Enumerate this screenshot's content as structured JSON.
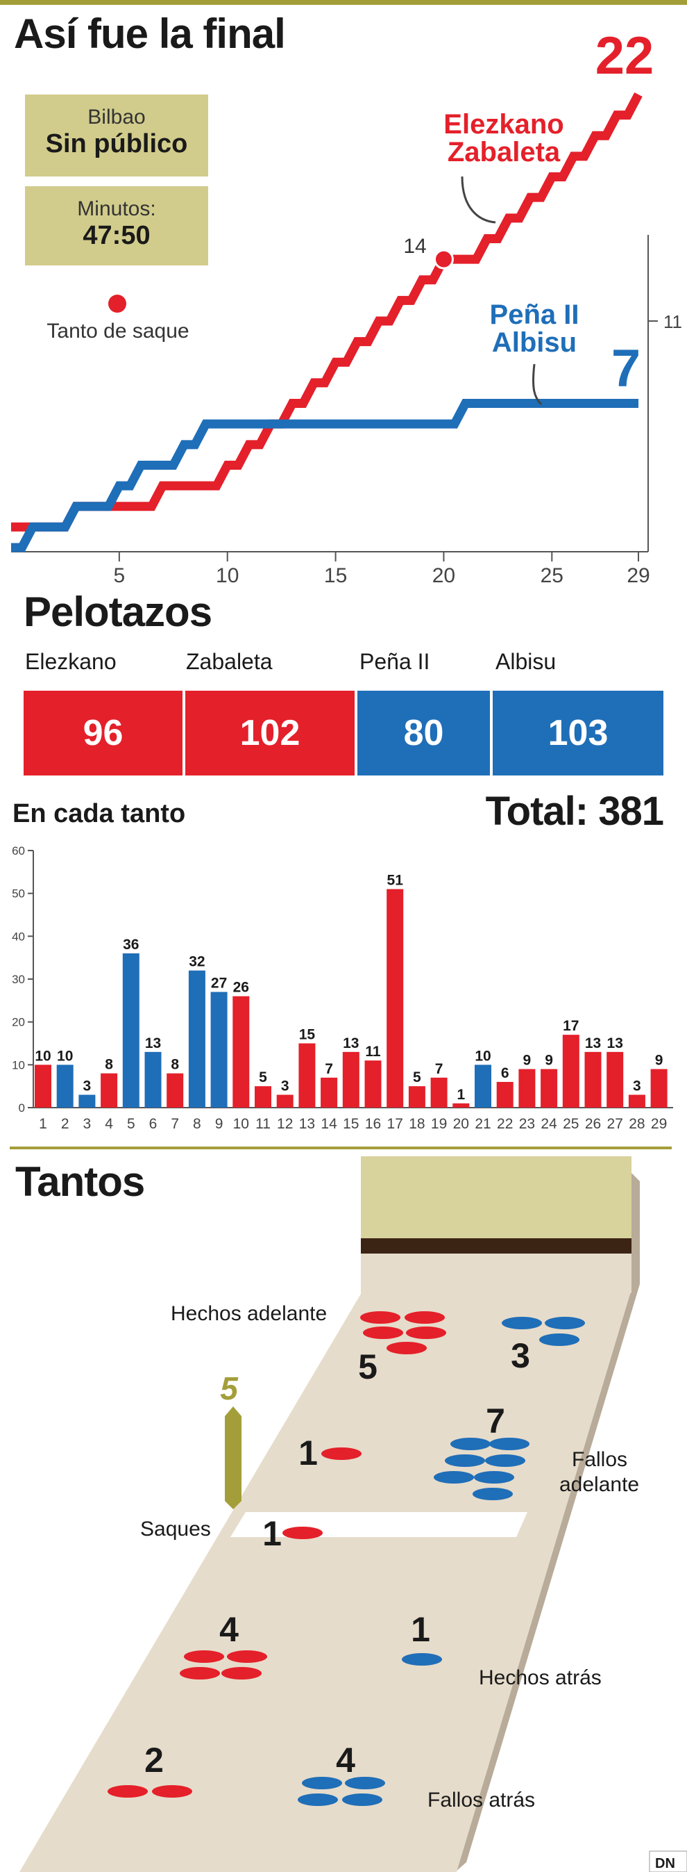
{
  "colors": {
    "red": "#e4202a",
    "blue": "#1f6eb8",
    "olive": "#d2cc8c",
    "dark_olive": "#a49e3a",
    "court": "#e6dccb",
    "text": "#1a1a1a"
  },
  "header": {
    "title": "Así fue la final"
  },
  "info": {
    "venue_label": "Bilbao",
    "venue_value": "Sin público",
    "minutes_label": "Minutos:",
    "minutes_value": "47:50",
    "legend_serve": "Tanto de saque"
  },
  "chart_data": [
    {
      "type": "line",
      "x_ticks": [
        5,
        10,
        15,
        20,
        25,
        29
      ],
      "y_tick": 11,
      "xlim": [
        0,
        29
      ],
      "ylim": [
        0,
        22
      ],
      "annotation_14": "14",
      "series": [
        {
          "name": "Elezkano Zabaleta",
          "label_line1": "Elezkano",
          "label_line2": "Zabaleta",
          "final": "22",
          "color": "#e4202a",
          "points": [
            [
              0,
              1
            ],
            [
              2,
              1
            ],
            [
              3,
              2
            ],
            [
              4,
              2
            ],
            [
              5,
              2
            ],
            [
              6,
              2
            ],
            [
              7,
              3
            ],
            [
              8,
              3
            ],
            [
              9,
              3
            ],
            [
              10,
              4
            ],
            [
              11,
              5
            ],
            [
              12,
              6
            ],
            [
              13,
              7
            ],
            [
              14,
              8
            ],
            [
              15,
              9
            ],
            [
              16,
              10
            ],
            [
              17,
              11
            ],
            [
              18,
              12
            ],
            [
              19,
              13
            ],
            [
              20,
              14
            ],
            [
              21,
              14
            ],
            [
              22,
              15
            ],
            [
              23,
              16
            ],
            [
              24,
              17
            ],
            [
              25,
              18
            ],
            [
              26,
              19
            ],
            [
              27,
              20
            ],
            [
              28,
              21
            ],
            [
              29,
              22
            ]
          ]
        },
        {
          "name": "Peña II Albisu",
          "label_line1": "Peña II",
          "label_line2": "Albisu",
          "final": "7",
          "color": "#1f6eb8",
          "points": [
            [
              0,
              0
            ],
            [
              1,
              1
            ],
            [
              2,
              1
            ],
            [
              3,
              2
            ],
            [
              4,
              2
            ],
            [
              5,
              3
            ],
            [
              6,
              4
            ],
            [
              7,
              4
            ],
            [
              8,
              5
            ],
            [
              9,
              6
            ],
            [
              10,
              6
            ],
            [
              11,
              6
            ],
            [
              12,
              6
            ],
            [
              13,
              6
            ],
            [
              14,
              6
            ],
            [
              15,
              6
            ],
            [
              16,
              6
            ],
            [
              17,
              6
            ],
            [
              18,
              6
            ],
            [
              19,
              6
            ],
            [
              20,
              6
            ],
            [
              21,
              7
            ],
            [
              22,
              7
            ],
            [
              23,
              7
            ],
            [
              24,
              7
            ],
            [
              25,
              7
            ],
            [
              26,
              7
            ],
            [
              27,
              7
            ],
            [
              28,
              7
            ],
            [
              29,
              7
            ]
          ]
        }
      ],
      "serve_points": [
        [
          20,
          14
        ]
      ]
    },
    {
      "type": "bar",
      "title": "En cada tanto",
      "total_label": "Total: 381",
      "ylim": [
        0,
        60
      ],
      "y_ticks": [
        0,
        10,
        20,
        30,
        40,
        50,
        60
      ],
      "categories": [
        "1",
        "2",
        "3",
        "4",
        "5",
        "6",
        "7",
        "8",
        "9",
        "10",
        "11",
        "12",
        "13",
        "14",
        "15",
        "16",
        "17",
        "18",
        "19",
        "20",
        "21",
        "22",
        "23",
        "24",
        "25",
        "26",
        "27",
        "28",
        "29"
      ],
      "values": [
        10,
        10,
        3,
        8,
        36,
        13,
        8,
        32,
        27,
        26,
        5,
        3,
        15,
        7,
        13,
        11,
        51,
        5,
        7,
        1,
        10,
        6,
        9,
        9,
        17,
        13,
        13,
        3,
        9
      ],
      "winner": [
        "red",
        "blue",
        "blue",
        "red",
        "blue",
        "blue",
        "red",
        "blue",
        "blue",
        "red",
        "red",
        "red",
        "red",
        "red",
        "red",
        "red",
        "red",
        "red",
        "red",
        "red",
        "blue",
        "red",
        "red",
        "red",
        "red",
        "red",
        "red",
        "red",
        "red"
      ]
    }
  ],
  "pelotazos": {
    "title": "Pelotazos",
    "players": [
      {
        "name": "Elezkano",
        "value": "96",
        "color": "#e4202a"
      },
      {
        "name": "Zabaleta",
        "value": "102",
        "color": "#e4202a"
      },
      {
        "name": "Peña II",
        "value": "80",
        "color": "#1f6eb8"
      },
      {
        "name": "Albisu",
        "value": "103",
        "color": "#1f6eb8"
      }
    ]
  },
  "tantos": {
    "title": "Tantos",
    "marker": "5",
    "credit": "DN",
    "labels": {
      "hechos_adelante": "Hechos adelante",
      "fallos_adelante_1": "Fallos",
      "fallos_adelante_2": "adelante",
      "saques": "Saques",
      "hechos_atras": "Hechos atrás",
      "fallos_atras": "Fallos atrás"
    },
    "counts": {
      "red_hechos_adelante": "5",
      "blue_hechos_adelante": "3",
      "red_fallos_adelante": "1",
      "blue_fallos_adelante": "7",
      "red_saques": "1",
      "red_hechos_atras": "4",
      "blue_hechos_atras": "1",
      "red_fallos_atras": "2",
      "blue_fallos_atras": "4"
    }
  }
}
